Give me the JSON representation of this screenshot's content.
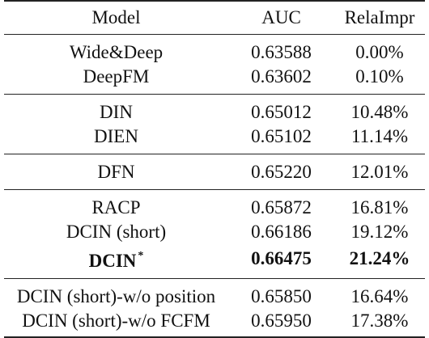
{
  "table": {
    "headers": [
      "Model",
      "AUC",
      "RelaImpr"
    ],
    "groups": [
      {
        "rows": [
          {
            "model": "Wide&Deep",
            "auc": "0.63588",
            "rel": "0.00%"
          },
          {
            "model": "DeepFM",
            "auc": "0.63602",
            "rel": "0.10%"
          }
        ]
      },
      {
        "rows": [
          {
            "model": "DIN",
            "auc": "0.65012",
            "rel": "10.48%"
          },
          {
            "model": "DIEN",
            "auc": "0.65102",
            "rel": "11.14%"
          }
        ]
      },
      {
        "rows": [
          {
            "model": "DFN",
            "auc": "0.65220",
            "rel": "12.01%"
          }
        ]
      },
      {
        "rows": [
          {
            "model": "RACP",
            "auc": "0.65872",
            "rel": "16.81%"
          },
          {
            "model": "DCIN (short)",
            "auc": "0.66186",
            "rel": "19.12%"
          },
          {
            "model": "DCIN",
            "marker": "*",
            "auc": "0.66475",
            "rel": "21.24%",
            "bold": true
          }
        ]
      },
      {
        "rows": [
          {
            "model": "DCIN (short)-w/o position",
            "auc": "0.65850",
            "rel": "16.64%"
          },
          {
            "model": "DCIN (short)-w/o FCFM",
            "auc": "0.65950",
            "rel": "17.38%"
          }
        ]
      }
    ]
  }
}
